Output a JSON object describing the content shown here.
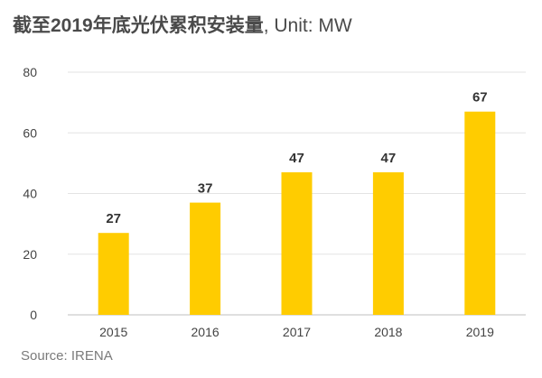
{
  "chart_data": {
    "type": "bar",
    "title": "截至2019年底光伏累积安装量",
    "title_suffix": ", Unit: MW",
    "categories": [
      "2015",
      "2016",
      "2017",
      "2018",
      "2019"
    ],
    "values": [
      27,
      37,
      47,
      47,
      67
    ],
    "data_labels": [
      "27",
      "37",
      "47",
      "47",
      "67"
    ],
    "xlabel": "",
    "ylabel": "",
    "ylim": [
      0,
      80
    ],
    "yticks": [
      "0",
      "20",
      "40",
      "60",
      "80"
    ],
    "grid": true,
    "legend": "none",
    "bar_color": "#FFCC00",
    "source": "Source: IRENA"
  }
}
